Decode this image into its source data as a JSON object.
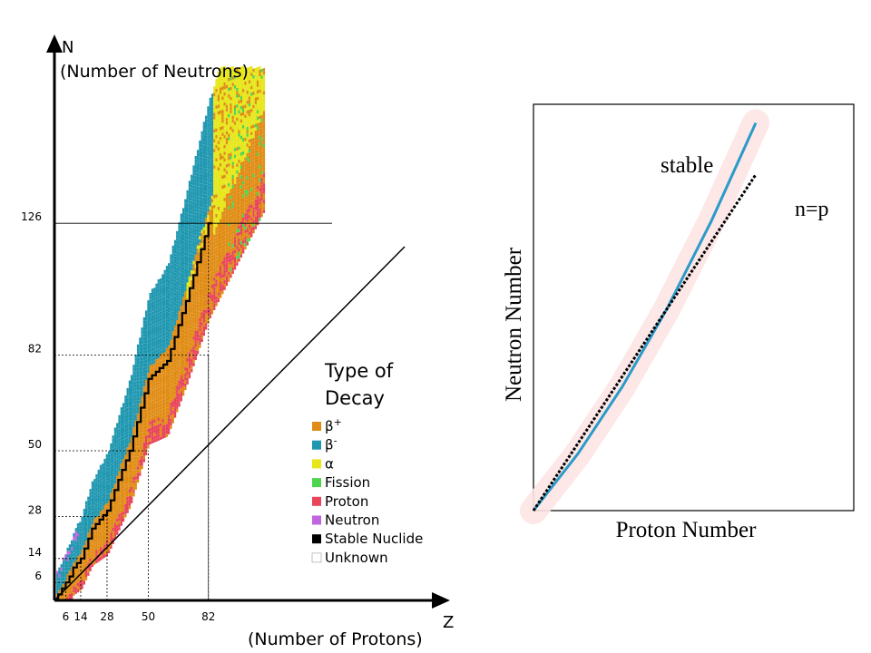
{
  "colors": {
    "beta_plus": "#e08c14",
    "beta_minus": "#1f97b0",
    "alpha": "#e6e619",
    "fission": "#4fd44f",
    "proton": "#e8445a",
    "neutron": "#c065e0",
    "stable": "#000000",
    "unknown": "#ffffff",
    "stable_band": "#fde4e4",
    "stable_line": "#2a9bc9"
  },
  "chart_data": [
    {
      "type": "heatmap",
      "title": "",
      "xlabel": "Z",
      "xlabel_sub": "(Number of Protons)",
      "ylabel": "N",
      "ylabel_sub": "(Number of Neutrons)",
      "magic_numbers": [
        6,
        14,
        28,
        50,
        82,
        126
      ],
      "x_ticks": [
        "6",
        "14",
        "28",
        "50",
        "82"
      ],
      "y_ticks": [
        "6",
        "14",
        "28",
        "50",
        "82",
        "126"
      ],
      "legend": {
        "title_line1": "Type of",
        "title_line2": "Decay",
        "placement": "right",
        "items": [
          {
            "key": "beta_plus",
            "symbol": "β",
            "sup": "+"
          },
          {
            "key": "beta_minus",
            "symbol": "β",
            "sup": "-"
          },
          {
            "key": "alpha",
            "symbol": "α",
            "sup": ""
          },
          {
            "key": "fission",
            "symbol": "Fission",
            "sup": ""
          },
          {
            "key": "proton",
            "symbol": "Proton",
            "sup": ""
          },
          {
            "key": "neutron",
            "symbol": "Neutron",
            "sup": ""
          },
          {
            "key": "stable",
            "symbol": "Stable Nuclide",
            "sup": ""
          },
          {
            "key": "unknown",
            "symbol": "Unknown",
            "sup": ""
          }
        ]
      },
      "series": [
        {
          "decay": "stable",
          "x": [
            0,
            2,
            4,
            6,
            8,
            10,
            14,
            20,
            28,
            35,
            40,
            50,
            60,
            70,
            82
          ],
          "y": [
            0,
            2,
            4,
            6,
            8,
            11,
            14,
            24,
            30,
            42,
            50,
            74,
            80,
            100,
            126
          ]
        },
        {
          "decay": "beta_minus",
          "x": [
            5,
            14,
            28,
            50,
            60,
            70,
            82,
            90,
            100
          ],
          "y": [
            14,
            28,
            47,
            85,
            100,
            118,
            140,
            162,
            178
          ]
        },
        {
          "decay": "beta_plus",
          "x": [
            5,
            14,
            28,
            50,
            60,
            70,
            82,
            90
          ],
          "y": [
            4,
            10,
            22,
            40,
            52,
            62,
            80,
            96
          ]
        },
        {
          "decay": "alpha",
          "x": [
            82,
            90,
            95,
            100,
            105
          ],
          "y": [
            118,
            128,
            140,
            150,
            160
          ]
        }
      ]
    },
    {
      "type": "line",
      "title": "",
      "xlabel": "Proton Number",
      "ylabel": "Neutron Number",
      "series": [
        {
          "name": "stable",
          "x": [
            0,
            20,
            40,
            60,
            80,
            100
          ],
          "y": [
            0,
            22,
            48,
            78,
            112,
            150
          ]
        },
        {
          "name": "n=p",
          "x": [
            0,
            100
          ],
          "y": [
            0,
            130
          ]
        }
      ]
    }
  ]
}
